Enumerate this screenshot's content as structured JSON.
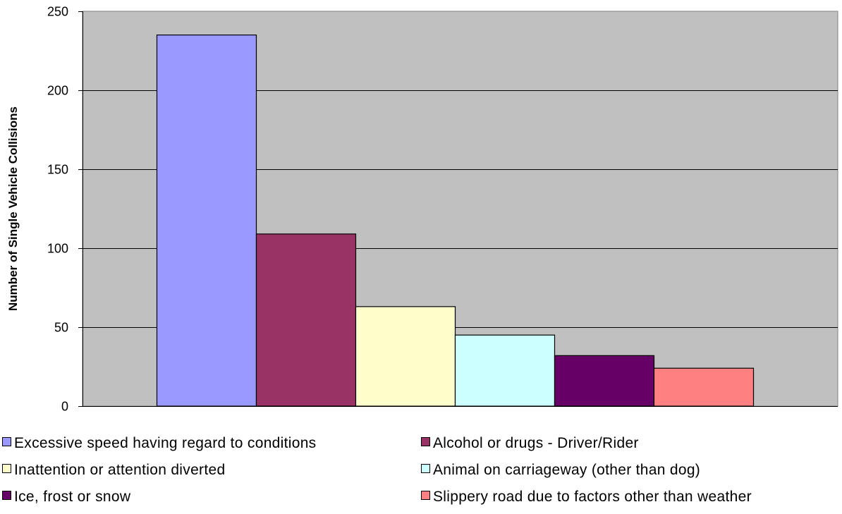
{
  "chart_data": {
    "type": "bar",
    "title": "",
    "xlabel": "",
    "ylabel": "Number of Single Vehicle Collisions",
    "ylim": [
      0,
      250
    ],
    "yticks": [
      0,
      50,
      100,
      150,
      200,
      250
    ],
    "grid": true,
    "plot_background": "#c0c0c0",
    "legend_position": "bottom",
    "series": [
      {
        "name": "Excessive speed having regard to conditions",
        "value": 235,
        "color": "#9999ff"
      },
      {
        "name": "Alcohol or drugs - Driver/Rider",
        "value": 109,
        "color": "#993366"
      },
      {
        "name": "Inattention or attention diverted",
        "value": 63,
        "color": "#ffffcc"
      },
      {
        "name": "Animal on carriageway (other than dog)",
        "value": 45,
        "color": "#ccffff"
      },
      {
        "name": "Ice, frost or snow",
        "value": 32,
        "color": "#660066"
      },
      {
        "name": "Slippery road due to factors other than weather",
        "value": 24,
        "color": "#ff8080"
      }
    ]
  }
}
